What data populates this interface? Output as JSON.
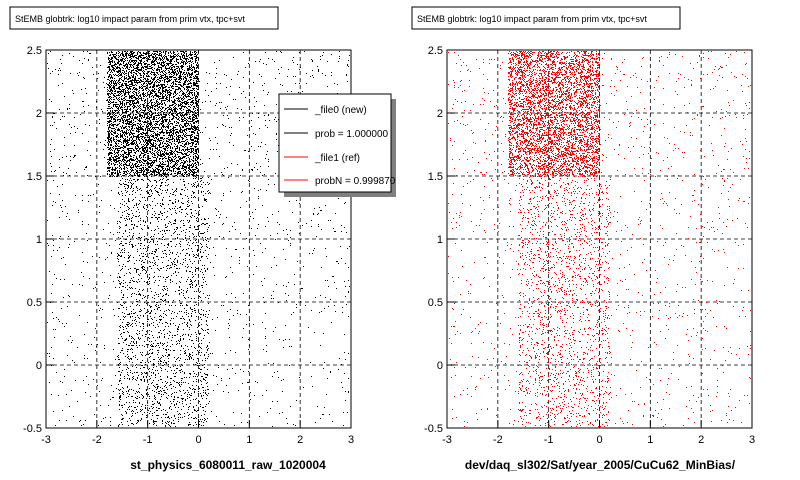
{
  "footer": "",
  "chart_data": [
    {
      "type": "scatter",
      "title": "StEMB globtrk: log10 impact param from prim vtx, tpc+svt",
      "xlabel": "st_physics_6080011_raw_1020004",
      "ylabel": "",
      "xlim": [
        -3,
        3
      ],
      "ylim": [
        -0.5,
        2.5
      ],
      "x_ticks": [
        "-3",
        "-2",
        "-1",
        "0",
        "1",
        "2",
        "3"
      ],
      "y_ticks": [
        "-0.5",
        "0",
        "0.5",
        "1",
        "1.5",
        "2",
        "2.5"
      ],
      "grid": true,
      "marker_color": "#000000",
      "density_regions": [
        {
          "x_range": [
            -1.8,
            0.0
          ],
          "y_range": [
            1.5,
            2.5
          ],
          "points": 6000
        },
        {
          "x_range": [
            -3.0,
            3.0
          ],
          "y_range": [
            1.5,
            2.5
          ],
          "points": 700
        },
        {
          "x_range": [
            -1.6,
            0.2
          ],
          "y_range": [
            -0.5,
            1.5
          ],
          "points": 2200
        },
        {
          "x_range": [
            -3.0,
            3.0
          ],
          "y_range": [
            -0.5,
            1.5
          ],
          "points": 900
        }
      ],
      "legend": {
        "placement": "top-right",
        "entries": [
          {
            "label": "_file0 (new)",
            "color": "#000000"
          },
          {
            "label": "prob = 1.000000",
            "color": "#000000"
          },
          {
            "label": "_file1 (ref)",
            "color": "#ff0000"
          },
          {
            "label": "probN = 0.999870",
            "color": "#ff0000"
          }
        ]
      }
    },
    {
      "type": "scatter",
      "title": "StEMB globtrk: log10 impact param from prim vtx, tpc+svt",
      "xlabel": "dev/daq_sl302/Sat/year_2005/CuCu62_MinBias/",
      "ylabel": "",
      "xlim": [
        -3,
        3
      ],
      "ylim": [
        -0.5,
        2.5
      ],
      "x_ticks": [
        "-3",
        "-2",
        "-1",
        "0",
        "1",
        "2",
        "3"
      ],
      "y_ticks": [
        "-0.5",
        "0",
        "0.5",
        "1",
        "1.5",
        "2",
        "2.5"
      ],
      "grid": true,
      "marker_color": "#ff0000",
      "density_regions": [
        {
          "x_range": [
            -1.8,
            0.0
          ],
          "y_range": [
            1.5,
            2.5
          ],
          "points": 4500
        },
        {
          "x_range": [
            -3.0,
            3.0
          ],
          "y_range": [
            1.5,
            2.5
          ],
          "points": 600
        },
        {
          "x_range": [
            -1.6,
            0.2
          ],
          "y_range": [
            -0.5,
            1.5
          ],
          "points": 1800
        },
        {
          "x_range": [
            -3.0,
            3.0
          ],
          "y_range": [
            -0.5,
            1.5
          ],
          "points": 800
        }
      ]
    }
  ]
}
